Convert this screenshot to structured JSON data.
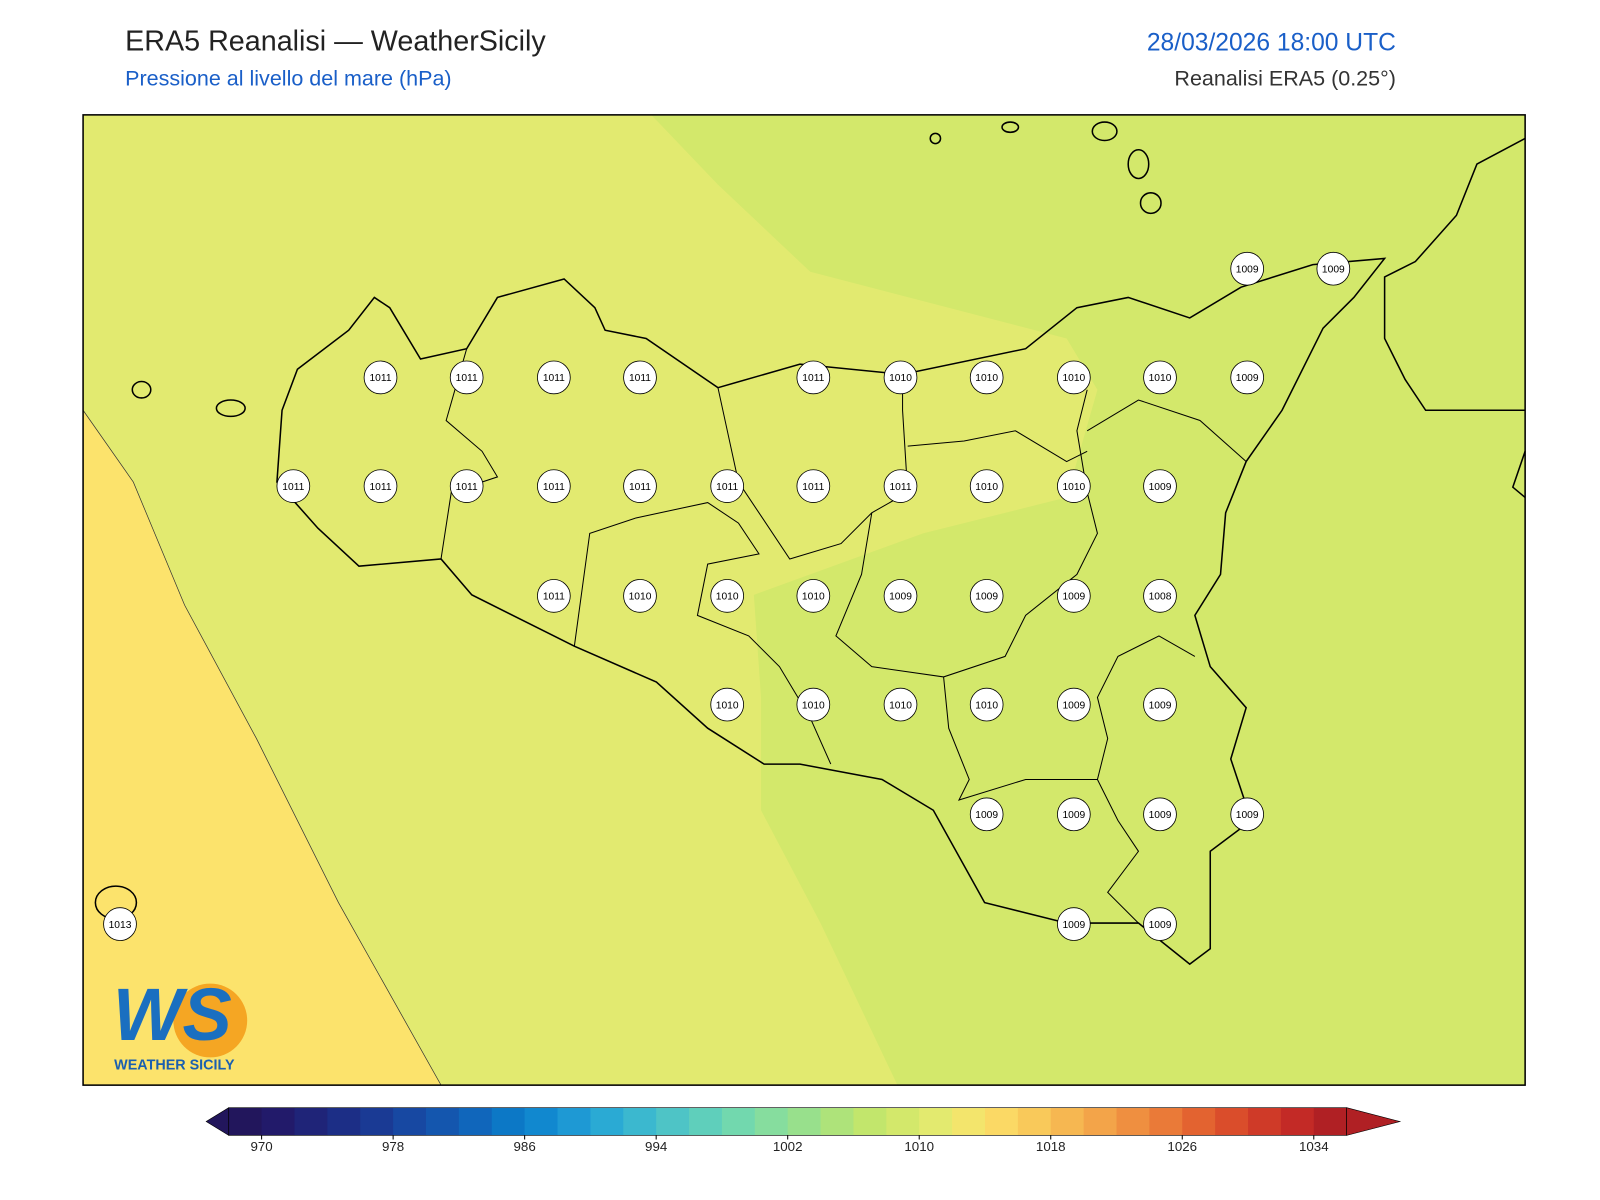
{
  "header": {
    "title": "ERA5 Reanalisi — WeatherSicily",
    "subtitle": "Pressione al livello del mare (hPa)",
    "datetime": "28/03/2026 18:00 UTC",
    "source": "Reanalisi ERA5 (0.25°)"
  },
  "stations": [
    1009,
    1009,
    1011,
    1011,
    1011,
    1011,
    1011,
    1010,
    1010,
    1010,
    1010,
    1009,
    1011,
    1011,
    1011,
    1011,
    1011,
    1011,
    1011,
    1011,
    1010,
    1010,
    1009,
    1011,
    1010,
    1010,
    1010,
    1009,
    1009,
    1009,
    1008,
    1010,
    1010,
    1010,
    1010,
    1009,
    1009,
    1009,
    1009,
    1009,
    1009,
    1013,
    1009,
    1009
  ],
  "colorbar": {
    "lim": [
      968,
      1036
    ],
    "ticks": [
      970,
      978,
      986,
      994,
      1002,
      1010,
      1018,
      1026,
      1034
    ],
    "colors": [
      "#22165c",
      "#221a6a",
      "#1f2478",
      "#1c2e86",
      "#1a3a94",
      "#1748a2",
      "#1456ae",
      "#1066bb",
      "#0c78c6",
      "#1188cf",
      "#1e99d4",
      "#2aaad4",
      "#3bb8cf",
      "#4ec4c6",
      "#5fcfbb",
      "#72d8ae",
      "#86dd9e",
      "#98e08c",
      "#aee37a",
      "#c2e66c",
      "#d3e86b",
      "#e3ea6f",
      "#f3e56c",
      "#fbd965",
      "#f9c95a",
      "#f6b751",
      "#f3a449",
      "#ef8f40",
      "#ea7a38",
      "#e36330",
      "#da4d2b",
      "#cf3a28",
      "#c32a26",
      "#b02024"
    ]
  },
  "logo": {
    "mark": "WS",
    "name": "WEATHER SICILY"
  }
}
